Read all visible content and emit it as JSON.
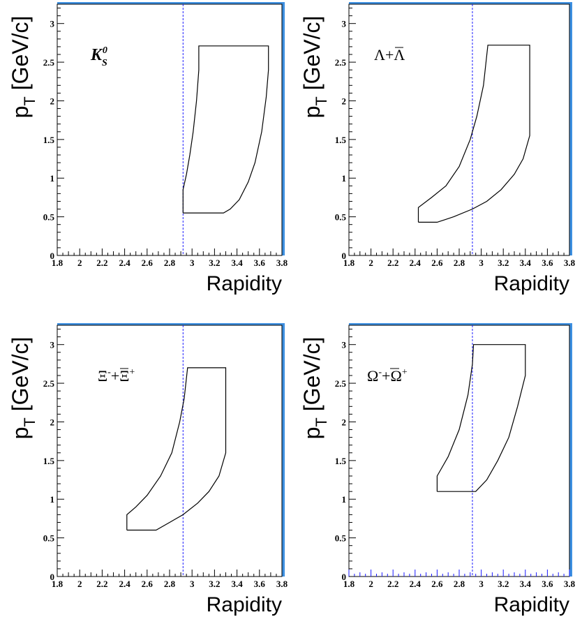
{
  "colors": {
    "frame": "#000000",
    "frame_shadow": "#3d8fe0",
    "ref_line": "#1a1aff",
    "region": "#000000"
  },
  "chart_data": [
    {
      "type": "line",
      "panel": "K0S",
      "label_html": "<tspan font-style='italic' font-weight='bold'>K</tspan><tspan font-style='italic' font-weight='bold' font-size='14' dy='8'>S</tspan><tspan font-style='italic' font-weight='bold' font-size='14' dx='-7' dy='-18'>0</tspan>",
      "xlabel": "Rapidity",
      "ylabel": "p_T  [GeV/c]",
      "xlim": [
        1.8,
        3.8
      ],
      "ylim": [
        0,
        3.25
      ],
      "x_ticks": [
        "1.8",
        "2",
        "2.2",
        "2.4",
        "2.6",
        "2.8",
        "3",
        "3.2",
        "3.4",
        "3.6",
        "3.8"
      ],
      "y_ticks": [
        "0",
        "0.5",
        "1",
        "1.5",
        "2",
        "2.5",
        "3"
      ],
      "ref_line_x": 2.92,
      "region": [
        [
          2.92,
          0.55
        ],
        [
          3.28,
          0.55
        ],
        [
          3.34,
          0.6
        ],
        [
          3.42,
          0.72
        ],
        [
          3.5,
          0.95
        ],
        [
          3.56,
          1.2
        ],
        [
          3.62,
          1.6
        ],
        [
          3.66,
          2.05
        ],
        [
          3.68,
          2.4
        ],
        [
          3.68,
          2.71
        ],
        [
          3.06,
          2.71
        ],
        [
          3.06,
          2.4
        ],
        [
          3.04,
          2.0
        ],
        [
          3.01,
          1.6
        ],
        [
          2.98,
          1.3
        ],
        [
          2.95,
          1.05
        ],
        [
          2.92,
          0.85
        ],
        [
          2.92,
          0.55
        ]
      ]
    },
    {
      "type": "line",
      "panel": "Lambda",
      "label_html": "<tspan>Λ+</tspan><tspan>Λ</tspan>",
      "label_bar_on_second": true,
      "xlabel": "Rapidity",
      "ylabel": "p_T  [GeV/c]",
      "xlim": [
        1.8,
        3.8
      ],
      "ylim": [
        0,
        3.25
      ],
      "x_ticks": [
        "1.8",
        "2",
        "2.2",
        "2.4",
        "2.6",
        "2.8",
        "3",
        "3.2",
        "3.4",
        "3.6",
        "3.8"
      ],
      "y_ticks": [
        "0",
        "0.5",
        "1",
        "1.5",
        "2",
        "2.5",
        "3"
      ],
      "ref_line_x": 2.92,
      "region": [
        [
          2.43,
          0.43
        ],
        [
          2.6,
          0.43
        ],
        [
          2.75,
          0.5
        ],
        [
          2.92,
          0.6
        ],
        [
          3.05,
          0.7
        ],
        [
          3.18,
          0.85
        ],
        [
          3.3,
          1.05
        ],
        [
          3.38,
          1.25
        ],
        [
          3.44,
          1.55
        ],
        [
          3.44,
          2.72
        ],
        [
          3.06,
          2.72
        ],
        [
          3.02,
          2.2
        ],
        [
          2.96,
          1.8
        ],
        [
          2.9,
          1.5
        ],
        [
          2.8,
          1.15
        ],
        [
          2.68,
          0.9
        ],
        [
          2.55,
          0.75
        ],
        [
          2.43,
          0.62
        ],
        [
          2.43,
          0.43
        ]
      ]
    },
    {
      "type": "line",
      "panel": "Xi",
      "label_html": "<tspan>Ξ</tspan><tspan font-size='14' dy='-9'>-</tspan><tspan dy='9'>+</tspan><tspan>Ξ</tspan><tspan font-size='14' dy='-9'>+</tspan>",
      "xlabel": "Rapidity",
      "ylabel": "p_T  [GeV/c]",
      "xlim": [
        1.8,
        3.8
      ],
      "ylim": [
        0,
        3.25
      ],
      "x_ticks": [
        "1.8",
        "2",
        "2.2",
        "2.4",
        "2.6",
        "2.8",
        "3",
        "3.2",
        "3.4",
        "3.6",
        "3.8"
      ],
      "y_ticks": [
        "0",
        "0.5",
        "1",
        "1.5",
        "2",
        "2.5",
        "3"
      ],
      "ref_line_x": 2.92,
      "region": [
        [
          2.42,
          0.6
        ],
        [
          2.68,
          0.6
        ],
        [
          2.8,
          0.7
        ],
        [
          2.92,
          0.8
        ],
        [
          3.05,
          0.95
        ],
        [
          3.15,
          1.1
        ],
        [
          3.24,
          1.3
        ],
        [
          3.3,
          1.6
        ],
        [
          3.3,
          2.7
        ],
        [
          2.96,
          2.7
        ],
        [
          2.93,
          2.3
        ],
        [
          2.89,
          2.0
        ],
        [
          2.82,
          1.6
        ],
        [
          2.72,
          1.3
        ],
        [
          2.6,
          1.05
        ],
        [
          2.5,
          0.9
        ],
        [
          2.42,
          0.8
        ],
        [
          2.42,
          0.6
        ]
      ]
    },
    {
      "type": "line",
      "panel": "Omega",
      "label_html": "<tspan>Ω</tspan><tspan font-size='14' dy='-9'>-</tspan><tspan dy='9'>+</tspan><tspan>Ω</tspan><tspan font-size='14' dy='-9'>+</tspan>",
      "xlabel": "Rapidity",
      "ylabel": "p_T  [GeV/c]",
      "xlim": [
        1.8,
        3.8
      ],
      "ylim": [
        0,
        3.25
      ],
      "x_ticks": [
        "1.8",
        "2",
        "2.2",
        "2.4",
        "2.6",
        "2.8",
        "3",
        "3.2",
        "3.4",
        "3.6",
        "3.8"
      ],
      "y_ticks": [
        "0",
        "0.5",
        "1",
        "1.5",
        "2",
        "2.5",
        "3"
      ],
      "ref_line_x": 2.92,
      "region": [
        [
          2.6,
          1.1
        ],
        [
          2.95,
          1.1
        ],
        [
          3.05,
          1.25
        ],
        [
          3.15,
          1.5
        ],
        [
          3.25,
          1.8
        ],
        [
          3.33,
          2.2
        ],
        [
          3.4,
          2.6
        ],
        [
          3.4,
          3.0
        ],
        [
          2.93,
          3.0
        ],
        [
          2.92,
          2.75
        ],
        [
          2.88,
          2.35
        ],
        [
          2.8,
          1.9
        ],
        [
          2.7,
          1.55
        ],
        [
          2.6,
          1.3
        ],
        [
          2.6,
          1.1
        ]
      ]
    }
  ]
}
